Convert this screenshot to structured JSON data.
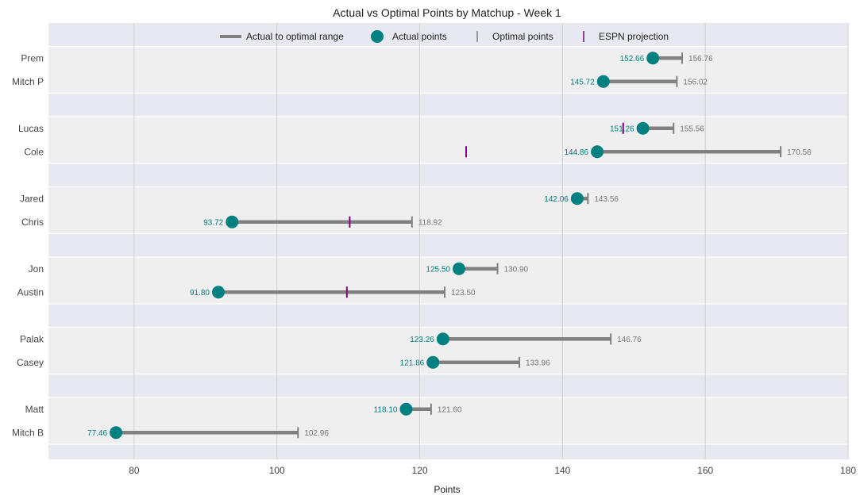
{
  "chart_data": {
    "type": "dumbbell",
    "title": "Actual vs Optimal Points by Matchup - Week 1",
    "xlabel": "Points",
    "xlim": [
      68,
      180
    ],
    "xticks": [
      80,
      100,
      120,
      140,
      160,
      180
    ],
    "legend": {
      "placement": "top-center",
      "items": [
        {
          "key": "range",
          "label": "Actual to optimal range"
        },
        {
          "key": "actual",
          "label": "Actual points"
        },
        {
          "key": "optimal",
          "label": "Optimal points"
        },
        {
          "key": "espn",
          "label": "ESPN projection"
        }
      ]
    },
    "colors": {
      "range": "#808080",
      "actual": "#008080",
      "optimal": "#808080",
      "espn": "#800080",
      "band_dark": "#e8e8f0",
      "band_light": "#efefef",
      "grid": "#d0d0d0"
    },
    "matchups": [
      {
        "teams": [
          {
            "name": "Prem",
            "actual": 152.66,
            "actual_label": "152.66",
            "optimal": 156.76,
            "optimal_label": "156.76",
            "espn": 152.8
          },
          {
            "name": "Mitch P",
            "actual": 145.72,
            "actual_label": "145.72",
            "optimal": 156.02,
            "optimal_label": "156.02",
            "espn": null
          }
        ]
      },
      {
        "teams": [
          {
            "name": "Lucas",
            "actual": 151.26,
            "actual_label": "151.26",
            "optimal": 155.56,
            "optimal_label": "155.56",
            "espn": 148.5
          },
          {
            "name": "Cole",
            "actual": 144.86,
            "actual_label": "144.86",
            "optimal": 170.56,
            "optimal_label": "170.56",
            "espn": 126.5
          }
        ]
      },
      {
        "teams": [
          {
            "name": "Jared",
            "actual": 142.06,
            "actual_label": "142.06",
            "optimal": 143.56,
            "optimal_label": "143.56",
            "espn": null
          },
          {
            "name": "Chris",
            "actual": 93.72,
            "actual_label": "93.72",
            "optimal": 118.92,
            "optimal_label": "118.92",
            "espn": 110.2
          }
        ]
      },
      {
        "teams": [
          {
            "name": "Jon",
            "actual": 125.5,
            "actual_label": "125.50",
            "optimal": 130.9,
            "optimal_label": "130.90",
            "espn": null
          },
          {
            "name": "Austin",
            "actual": 91.8,
            "actual_label": "91.80",
            "optimal": 123.5,
            "optimal_label": "123.50",
            "espn": 109.8
          }
        ]
      },
      {
        "teams": [
          {
            "name": "Palak",
            "actual": 123.26,
            "actual_label": "123.26",
            "optimal": 146.76,
            "optimal_label": "146.76",
            "espn": null
          },
          {
            "name": "Casey",
            "actual": 121.86,
            "actual_label": "121.86",
            "optimal": 133.96,
            "optimal_label": "133.96",
            "espn": null
          }
        ]
      },
      {
        "teams": [
          {
            "name": "Matt",
            "actual": 118.1,
            "actual_label": "118.10",
            "optimal": 121.6,
            "optimal_label": "121.60",
            "espn": null
          },
          {
            "name": "Mitch B",
            "actual": 77.46,
            "actual_label": "77.46",
            "optimal": 102.96,
            "optimal_label": "102.96",
            "espn": null
          }
        ]
      }
    ]
  }
}
